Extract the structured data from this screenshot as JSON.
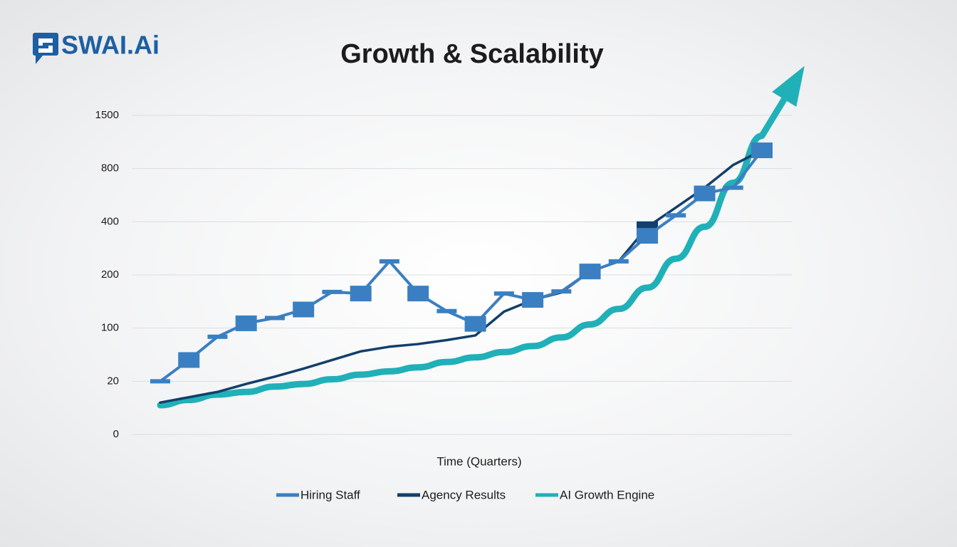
{
  "brand": "SWAI.Ai",
  "chart_data": {
    "type": "line",
    "title": "Growth & Scalability",
    "x_label": "Time (Quarters)",
    "categories": [
      null,
      null,
      null,
      null,
      null,
      null,
      null,
      null,
      null,
      null,
      null,
      null,
      null,
      null,
      null,
      null,
      null,
      null,
      null,
      null,
      null,
      null
    ],
    "series": [
      {
        "name": "Hiring Staff",
        "color": "#3a7fc1",
        "values": [
          20,
          52,
          87,
          109,
          119,
          135,
          168,
          165,
          251,
          165,
          132,
          108,
          165,
          153,
          169,
          213,
          251,
          347,
          448,
          613,
          656,
          1040
        ]
      },
      {
        "name": "Agency Results",
        "color": "#123f6b",
        "values": [
          12,
          14,
          16,
          19,
          27,
          39,
          52,
          65,
          72,
          76,
          82,
          89,
          131,
          153,
          167,
          213,
          251,
          380,
          507,
          656,
          848,
          1040
        ]
      },
      {
        "name": "AI Growth Engine",
        "color": "#20b0b8",
        "values": [
          11,
          13,
          15,
          16,
          18,
          19,
          23,
          30,
          35,
          41,
          49,
          56,
          64,
          73,
          86,
          107,
          136,
          176,
          261,
          381,
          693,
          1231
        ]
      }
    ],
    "ylim": [
      0,
      1500
    ],
    "yticks": [
      0,
      20,
      100,
      200,
      400,
      800,
      1500
    ],
    "grid": true
  }
}
